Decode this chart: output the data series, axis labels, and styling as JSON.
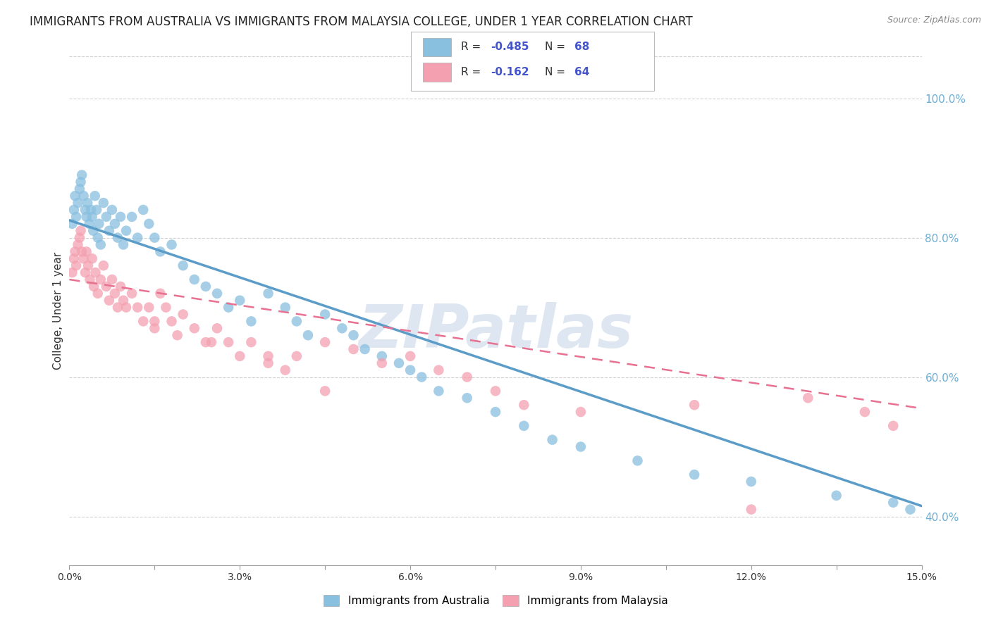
{
  "title": "IMMIGRANTS FROM AUSTRALIA VS IMMIGRANTS FROM MALAYSIA COLLEGE, UNDER 1 YEAR CORRELATION CHART",
  "source": "Source: ZipAtlas.com",
  "ylabel": "College, Under 1 year",
  "australia_legend_label": "Immigrants from Australia",
  "malaysia_legend_label": "Immigrants from Malaysia",
  "xlim": [
    0.0,
    15.0
  ],
  "ylim": [
    33.0,
    106.0
  ],
  "yticks": [
    40,
    60,
    80,
    100
  ],
  "ytick_labels": [
    "40.0%",
    "60.0%",
    "80.0%",
    "100.0%"
  ],
  "xticks": [
    0,
    1.5,
    3.0,
    4.5,
    6.0,
    7.5,
    9.0,
    10.5,
    12.0,
    13.5,
    15.0
  ],
  "xtick_labels": [
    "0.0%",
    "",
    "3.0%",
    "",
    "6.0%",
    "",
    "9.0%",
    "",
    "12.0%",
    "",
    "15.0%"
  ],
  "australia_color": "#89bfdf",
  "malaysia_color": "#f4a0b0",
  "australia_trend_color": "#5b9dc8",
  "malaysia_trend_color": "#e87090",
  "aus_trend_x": [
    0.0,
    15.0
  ],
  "aus_trend_y": [
    82.5,
    41.5
  ],
  "mal_trend_x": [
    0.0,
    15.0
  ],
  "mal_trend_y": [
    74.0,
    55.5
  ],
  "legend_R_aus": "-0.485",
  "legend_N_aus": "68",
  "legend_R_mal": "-0.162",
  "legend_N_mal": "64",
  "legend_text_color": "#333333",
  "legend_value_color": "#4455cc",
  "watermark": "ZIPatlas",
  "watermark_color": "#c8d8e8",
  "background_color": "#ffffff",
  "grid_color": "#cccccc",
  "right_tick_color": "#6baed6",
  "australia_x": [
    0.05,
    0.08,
    0.1,
    0.12,
    0.15,
    0.18,
    0.2,
    0.22,
    0.25,
    0.28,
    0.3,
    0.32,
    0.35,
    0.38,
    0.4,
    0.42,
    0.45,
    0.48,
    0.5,
    0.52,
    0.55,
    0.6,
    0.65,
    0.7,
    0.75,
    0.8,
    0.85,
    0.9,
    0.95,
    1.0,
    1.1,
    1.2,
    1.3,
    1.4,
    1.5,
    1.6,
    1.8,
    2.0,
    2.2,
    2.4,
    2.6,
    2.8,
    3.0,
    3.2,
    3.5,
    3.8,
    4.0,
    4.2,
    4.5,
    4.8,
    5.0,
    5.2,
    5.5,
    5.8,
    6.0,
    6.2,
    6.5,
    7.0,
    7.5,
    8.0,
    8.5,
    9.0,
    10.0,
    11.0,
    14.5,
    14.8,
    13.5,
    12.0
  ],
  "australia_y": [
    82,
    84,
    86,
    83,
    85,
    87,
    88,
    89,
    86,
    84,
    83,
    85,
    82,
    84,
    83,
    81,
    86,
    84,
    80,
    82,
    79,
    85,
    83,
    81,
    84,
    82,
    80,
    83,
    79,
    81,
    83,
    80,
    84,
    82,
    80,
    78,
    79,
    76,
    74,
    73,
    72,
    70,
    71,
    68,
    72,
    70,
    68,
    66,
    69,
    67,
    66,
    64,
    63,
    62,
    61,
    60,
    58,
    57,
    55,
    53,
    51,
    50,
    48,
    46,
    42,
    41,
    43,
    45
  ],
  "malaysia_x": [
    0.05,
    0.08,
    0.1,
    0.12,
    0.15,
    0.18,
    0.2,
    0.22,
    0.25,
    0.28,
    0.3,
    0.33,
    0.36,
    0.4,
    0.43,
    0.46,
    0.5,
    0.55,
    0.6,
    0.65,
    0.7,
    0.75,
    0.8,
    0.85,
    0.9,
    0.95,
    1.0,
    1.1,
    1.2,
    1.3,
    1.4,
    1.5,
    1.6,
    1.7,
    1.8,
    1.9,
    2.0,
    2.2,
    2.4,
    2.6,
    2.8,
    3.0,
    3.2,
    3.5,
    3.8,
    4.0,
    4.5,
    5.0,
    5.5,
    6.0,
    6.5,
    7.0,
    7.5,
    8.0,
    9.0,
    11.0,
    12.0,
    13.0,
    14.0,
    14.5,
    1.5,
    2.5,
    3.5,
    4.5
  ],
  "malaysia_y": [
    75,
    77,
    78,
    76,
    79,
    80,
    81,
    78,
    77,
    75,
    78,
    76,
    74,
    77,
    73,
    75,
    72,
    74,
    76,
    73,
    71,
    74,
    72,
    70,
    73,
    71,
    70,
    72,
    70,
    68,
    70,
    68,
    72,
    70,
    68,
    66,
    69,
    67,
    65,
    67,
    65,
    63,
    65,
    63,
    61,
    63,
    65,
    64,
    62,
    63,
    61,
    60,
    58,
    56,
    55,
    56,
    41,
    57,
    55,
    53,
    67,
    65,
    62,
    58
  ]
}
